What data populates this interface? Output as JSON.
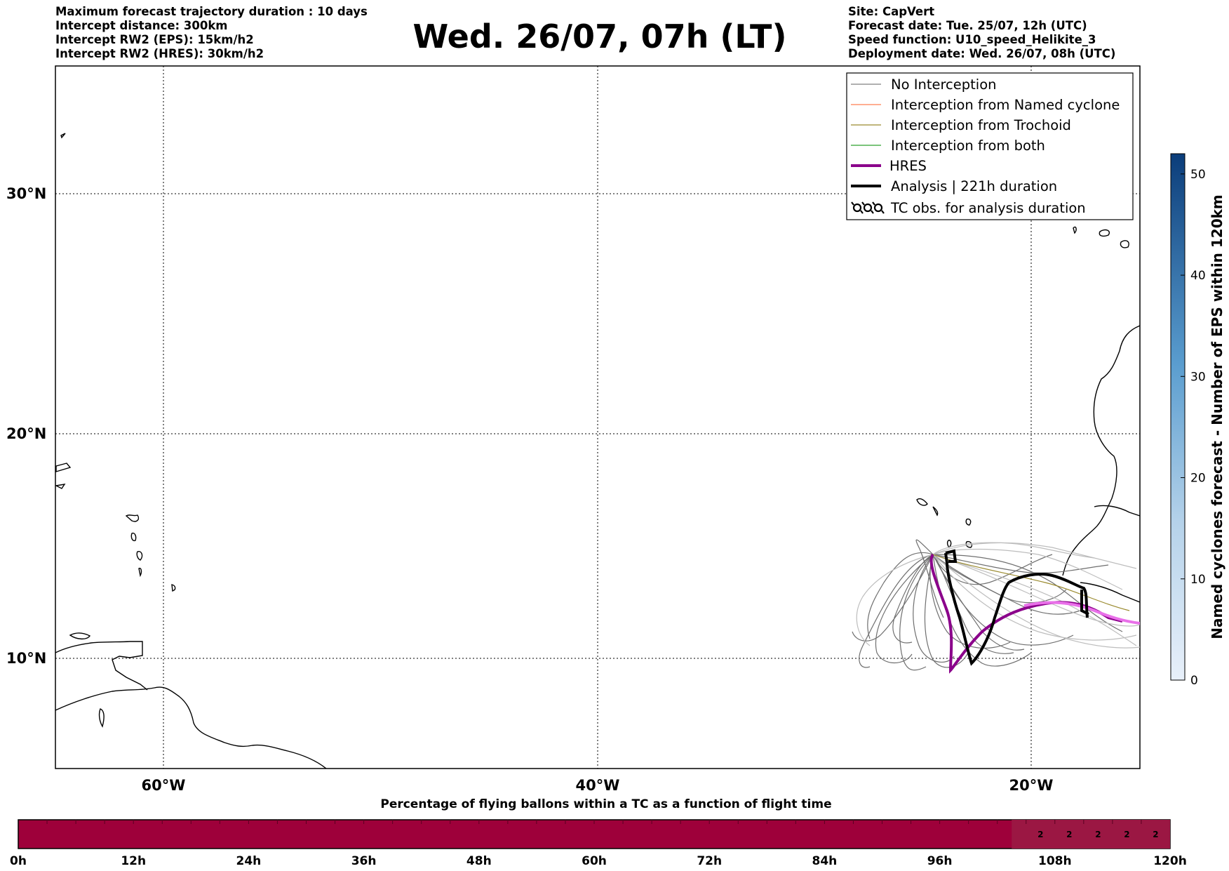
{
  "header_left": [
    "Maximum forecast trajectory duration : 10 days",
    "Intercept distance: 300km",
    "Intercept RW2 (EPS):  15km/h2",
    "Intercept RW2 (HRES): 30km/h2"
  ],
  "header_right": [
    "Site: CapVert",
    "Forecast date: Tue. 25/07, 12h (UTC)",
    "Speed function: U10_speed_Helikite_3",
    "Deployment date: Wed. 26/07, 08h (UTC)"
  ],
  "title": "Wed. 26/07, 07h (LT)",
  "map": {
    "lat_labels": [
      "30°N",
      "20°N",
      "10°N"
    ],
    "lon_labels": [
      "60°W",
      "40°W",
      "20°W"
    ]
  },
  "legend": [
    {
      "label": "No Interception",
      "color": "#808080",
      "style": "thin-line"
    },
    {
      "label": "Interception from Named cyclone",
      "color": "#ff7f50",
      "style": "thin-line"
    },
    {
      "label": "Interception from Trochoid",
      "color": "#9a8a2e",
      "style": "thin-line"
    },
    {
      "label": "Interception from both",
      "color": "#2ca02c",
      "style": "thin-line"
    },
    {
      "label": "HRES",
      "color": "#8b008b",
      "style": "thick-line"
    },
    {
      "label": "Analysis | 221h duration",
      "color": "#000000",
      "style": "thick-line"
    },
    {
      "label": "TC obs. for analysis duration",
      "color": "#000000",
      "style": "cyclone-symbol"
    }
  ],
  "colorbar": {
    "label": "Named cyclones forecast - Number of EPS within 120km",
    "ticks": [
      "0",
      "10",
      "20",
      "30",
      "40",
      "50"
    ],
    "max": 52,
    "color_low": "#e8f0fa",
    "color_high": "#0b3d7a"
  },
  "percentage_bar": {
    "title": "Percentage of flying ballons within a TC as a function of flight time",
    "hour_ticks": [
      "0h",
      "12h",
      "24h",
      "36h",
      "48h",
      "60h",
      "72h",
      "84h",
      "96h",
      "108h",
      "120h"
    ],
    "cell_values": [
      "2",
      "2",
      "2",
      "2",
      "2"
    ],
    "color_main": "#9e003a",
    "color_cells": "#9b1743"
  }
}
